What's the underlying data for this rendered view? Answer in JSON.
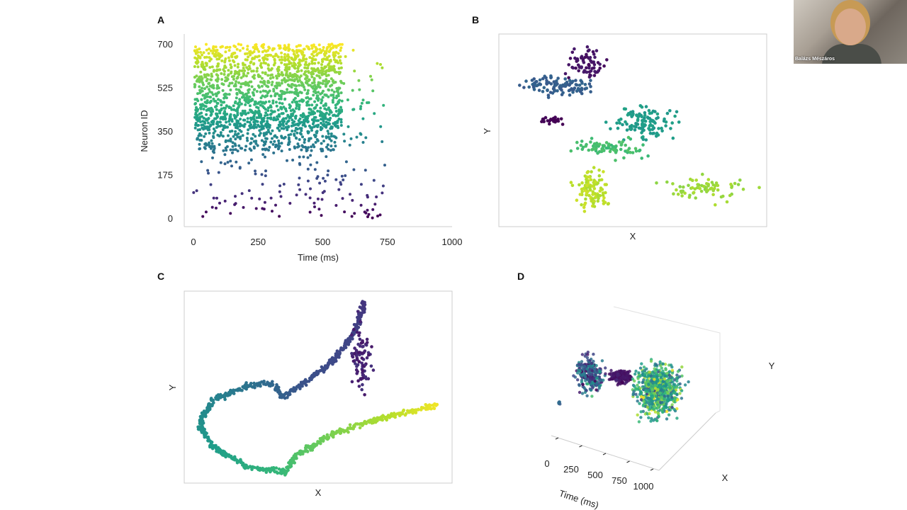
{
  "presenter": {
    "name": "Balázs Mészáros"
  },
  "chart_data": [
    {
      "panel": "A",
      "type": "scatter",
      "xlabel": "Time (ms)",
      "ylabel": "Neuron ID",
      "xlim": [
        0,
        1000
      ],
      "ylim": [
        0,
        700
      ],
      "xticks": [
        "0",
        "250",
        "500",
        "750",
        "1000"
      ],
      "xtick_values": [
        0,
        250,
        500,
        750,
        1000
      ],
      "yticks": [
        "0",
        "175",
        "350",
        "525",
        "700"
      ],
      "ytick_values": [
        0,
        175,
        350,
        525,
        700
      ],
      "colormap": "viridis",
      "color_by": "y",
      "grid": false,
      "regions": [
        {
          "x": [
            5,
            575
          ],
          "y": [
            360,
            700
          ],
          "n": 1400
        },
        {
          "x": [
            10,
            560
          ],
          "y": [
            270,
            420
          ],
          "n": 350
        },
        {
          "x": [
            0,
            740
          ],
          "y": [
            0,
            330
          ],
          "n": 170
        },
        {
          "x": [
            580,
            740
          ],
          "y": [
            330,
            700
          ],
          "n": 30
        }
      ]
    },
    {
      "panel": "B",
      "type": "scatter",
      "xlabel": "X",
      "ylabel": "Y",
      "xlim": [
        0,
        100
      ],
      "ylim": [
        0,
        100
      ],
      "colormap": "viridis",
      "clusters": [
        {
          "center": [
            32,
            85
          ],
          "spread": [
            6,
            7
          ],
          "n": 70,
          "c": 0.05
        },
        {
          "center": [
            22,
            73
          ],
          "spread": [
            10,
            4
          ],
          "n": 110,
          "c": 0.3
        },
        {
          "center": [
            20,
            55
          ],
          "spread": [
            3,
            1.5
          ],
          "n": 25,
          "c": 0.0
        },
        {
          "center": [
            55,
            54
          ],
          "spread": [
            9,
            7
          ],
          "n": 120,
          "c": 0.55
        },
        {
          "center": [
            40,
            41
          ],
          "spread": [
            10,
            4
          ],
          "n": 80,
          "c": 0.7
        },
        {
          "center": [
            35,
            20
          ],
          "spread": [
            5,
            8
          ],
          "n": 100,
          "c": 0.9
        },
        {
          "center": [
            75,
            20
          ],
          "spread": [
            14,
            5
          ],
          "n": 70,
          "c": 0.85
        }
      ]
    },
    {
      "panel": "C",
      "type": "scatter",
      "xlabel": "X",
      "ylabel": "Y",
      "xlim": [
        0,
        100
      ],
      "ylim": [
        0,
        100
      ],
      "colormap": "viridis",
      "trajectory": [
        [
          67.5,
          94.8,
          0.15
        ],
        [
          63.5,
          78.2,
          0.2
        ],
        [
          55.6,
          63.5,
          0.22
        ],
        [
          45,
          52.4,
          0.25
        ],
        [
          37,
          45,
          0.3
        ],
        [
          33,
          51.7,
          0.33
        ],
        [
          23.8,
          50.6,
          0.38
        ],
        [
          10.6,
          43.2,
          0.45
        ],
        [
          5.3,
          30.3,
          0.5
        ],
        [
          10.6,
          19.2,
          0.55
        ],
        [
          23.8,
          8.1,
          0.62
        ],
        [
          38.4,
          5.9,
          0.68
        ],
        [
          41,
          13.7,
          0.72
        ],
        [
          55.6,
          25.8,
          0.8
        ],
        [
          74,
          34,
          0.88
        ],
        [
          94,
          40.6,
          0.98
        ]
      ],
      "clusters": [
        {
          "center": [
            66,
            66
          ],
          "spread": [
            3.5,
            14
          ],
          "n": 90,
          "c": 0.05
        }
      ]
    },
    {
      "panel": "D",
      "type": "scatter",
      "subtype": "3d",
      "xlabel": "X",
      "ylabel": "Y",
      "zlabel": "Time (ms)",
      "time_ticks": [
        "0",
        "250",
        "500",
        "750",
        "1000"
      ],
      "colormap": "viridis",
      "clusters": [
        {
          "center": [
            22,
            62
          ],
          "spread": [
            6,
            11
          ],
          "n": 260,
          "c": 0.3,
          "cspread": 0.3
        },
        {
          "center": [
            40,
            60
          ],
          "spread": [
            5,
            4
          ],
          "n": 200,
          "c": 0.05,
          "cspread": 0.05
        },
        {
          "center": [
            62,
            50
          ],
          "spread": [
            10,
            15
          ],
          "n": 700,
          "c": 0.6,
          "cspread": 0.35
        },
        {
          "center": [
            4,
            40
          ],
          "spread": [
            0.8,
            0.8
          ],
          "n": 6,
          "c": 0.35,
          "cspread": 0.05
        }
      ]
    }
  ]
}
